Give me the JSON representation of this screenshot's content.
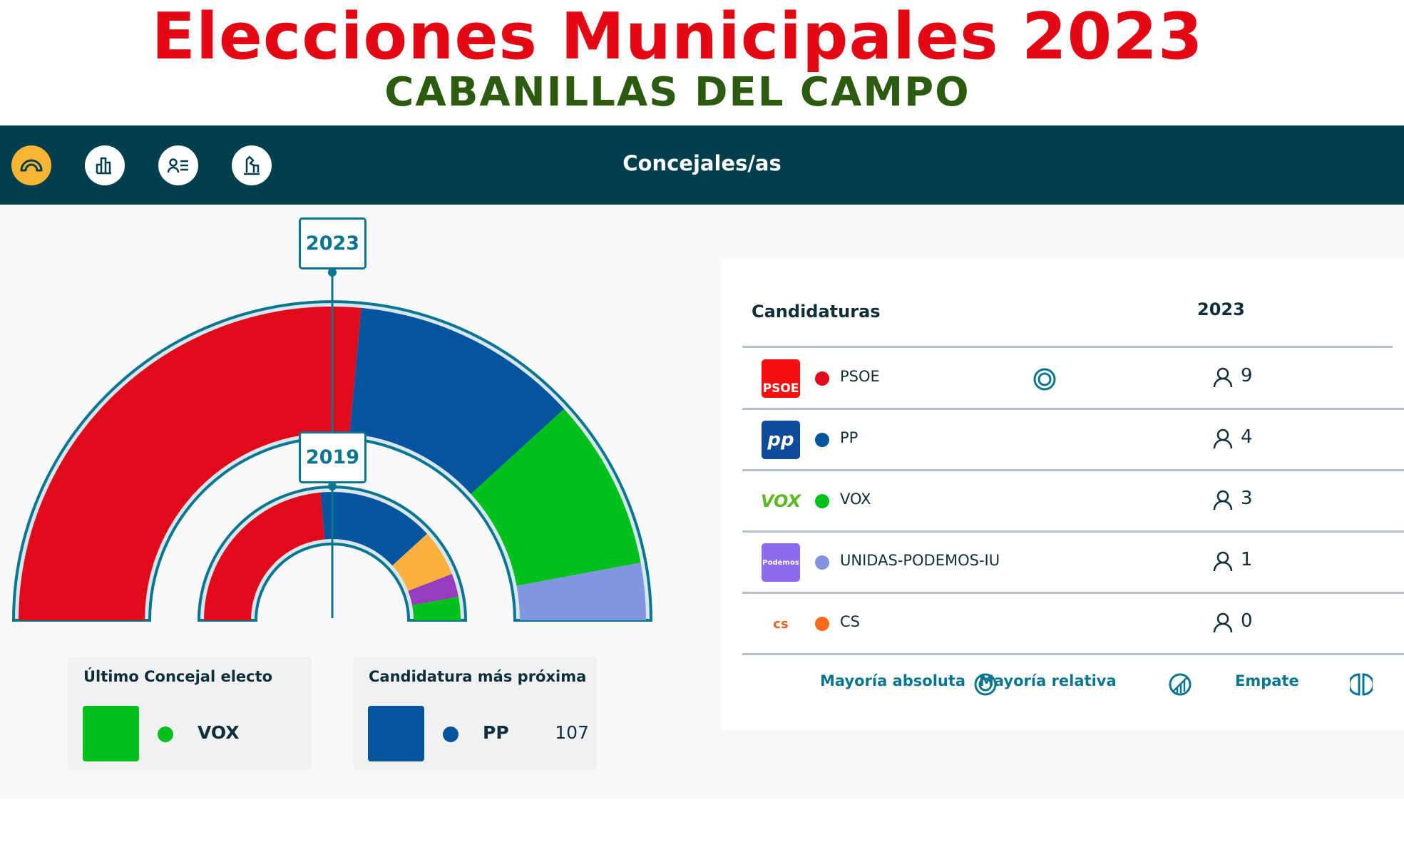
{
  "header": {
    "title": "Elecciones Municipales 2023",
    "subtitle": "CABANILLAS DEL CAMPO"
  },
  "topbar": {
    "title": "Concejales/as",
    "nav": [
      {
        "icon": "hemicycle-icon",
        "active": true
      },
      {
        "icon": "bar-chart-icon"
      },
      {
        "icon": "candidate-list-icon"
      },
      {
        "icon": "ballot-box-icon"
      }
    ]
  },
  "colors": {
    "accent": "#0a7590",
    "bar": "#023f4e",
    "active": "#fbb535"
  },
  "chart_data": {
    "type": "pie",
    "variant": "hemicycle",
    "series": [
      {
        "name": "2023",
        "values": [
          9,
          4,
          3,
          1
        ],
        "colors": [
          "#e10a1a",
          "#04549e",
          "#00c11c",
          "#8296e0"
        ],
        "labels": [
          "PSOE",
          "PP",
          "VOX",
          "UNIDAS-PODEMOS-IU"
        ]
      },
      {
        "name": "2019",
        "values": [
          8,
          5,
          2,
          1,
          1
        ],
        "colors": [
          "#e10a1a",
          "#04549e",
          "#fbb03f",
          "#963dbd",
          "#00c11c"
        ]
      }
    ]
  },
  "table": {
    "col_party": "Candidaturas",
    "col_year": "2023",
    "rows": [
      {
        "logo": "PSOE",
        "name": "PSOE",
        "color": "#e10a1a",
        "seats": "9",
        "majority": "absolute"
      },
      {
        "logo": "pp",
        "name": "PP",
        "color": "#04549e",
        "seats": "4"
      },
      {
        "logo": "VOX",
        "name": "VOX",
        "color": "#00c11c",
        "seats": "3"
      },
      {
        "logo": "Podemos",
        "name": "UNIDAS-PODEMOS-IU",
        "color": "#8296e0",
        "seats": "1"
      },
      {
        "logo": "cs",
        "name": "CS",
        "color": "#fb6a1f",
        "seats": "0"
      }
    ],
    "legend": {
      "absolute": "Mayoría absoluta",
      "relative": "Mayoría relativa",
      "tie": "Empate"
    }
  },
  "last_elected": {
    "title": "Último Concejal electo",
    "party": "VOX",
    "color": "#00c11c"
  },
  "closest": {
    "title": "Candidatura más próxima",
    "party": "PP",
    "color": "#04549e",
    "votes": "107"
  }
}
